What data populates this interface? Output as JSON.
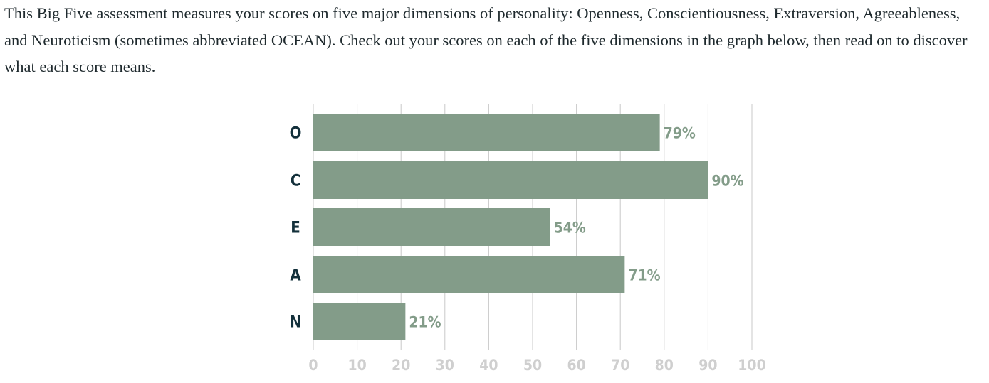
{
  "intro_text": "This Big Five assessment measures your scores on five major dimensions of personality: Openness, Conscientiousness, Extraversion, Agreeableness, and Neuroticism (sometimes abbreviated OCEAN). Check out your scores on each of the five dimensions in the graph below, then read on to discover what each score means.",
  "chart_data": {
    "type": "bar",
    "orientation": "horizontal",
    "categories": [
      "O",
      "C",
      "E",
      "A",
      "N"
    ],
    "values": [
      79,
      90,
      54,
      71,
      21
    ],
    "value_labels": [
      "79%",
      "90%",
      "54%",
      "71%",
      "21%"
    ],
    "xlim": [
      0,
      100
    ],
    "xticks": [
      0,
      10,
      20,
      30,
      40,
      50,
      60,
      70,
      80,
      90,
      100
    ],
    "grid": true,
    "bar_color": "#839c89",
    "category_label_color": "#13303b",
    "tick_label_color": "#cfcfcf"
  }
}
